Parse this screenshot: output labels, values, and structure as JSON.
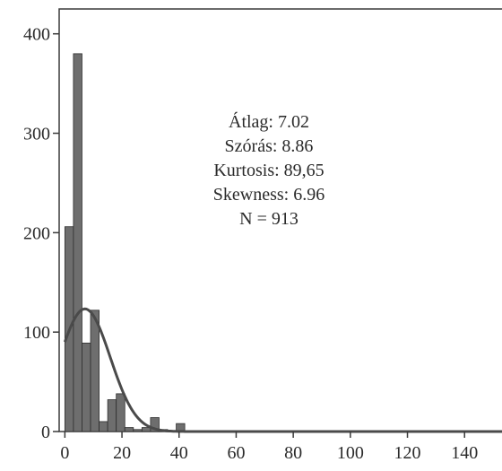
{
  "chart_data": {
    "type": "bar",
    "subtype": "histogram",
    "bin_width": 3,
    "xlim": [
      -2,
      155
    ],
    "ylim": [
      0,
      425
    ],
    "x_ticks": [
      0,
      20,
      40,
      60,
      80,
      100,
      120,
      140
    ],
    "y_ticks": [
      0,
      100,
      200,
      300,
      400
    ],
    "bins": [
      {
        "start": 0,
        "count": 206
      },
      {
        "start": 3,
        "count": 380
      },
      {
        "start": 6,
        "count": 89
      },
      {
        "start": 9,
        "count": 122
      },
      {
        "start": 12,
        "count": 10
      },
      {
        "start": 15,
        "count": 32
      },
      {
        "start": 18,
        "count": 38
      },
      {
        "start": 21,
        "count": 4
      },
      {
        "start": 24,
        "count": 2
      },
      {
        "start": 27,
        "count": 4
      },
      {
        "start": 30,
        "count": 14
      },
      {
        "start": 33,
        "count": 2
      },
      {
        "start": 36,
        "count": 1
      },
      {
        "start": 39,
        "count": 8
      }
    ],
    "normal_curve": {
      "mean": 7.02,
      "sd": 8.86,
      "n": 913
    },
    "grid": false,
    "stats_box": {
      "lines": [
        "Átlag: 7.02",
        "Szórás: 8.86",
        "Kurtosis: 89,65",
        "Skewness: 6.96",
        "N = 913"
      ]
    },
    "colors": {
      "bar": "#6e6e6e",
      "bar_edge": "#2e2e2e",
      "curve": "#4a4a4a",
      "axis": "#3a3a3a"
    }
  }
}
